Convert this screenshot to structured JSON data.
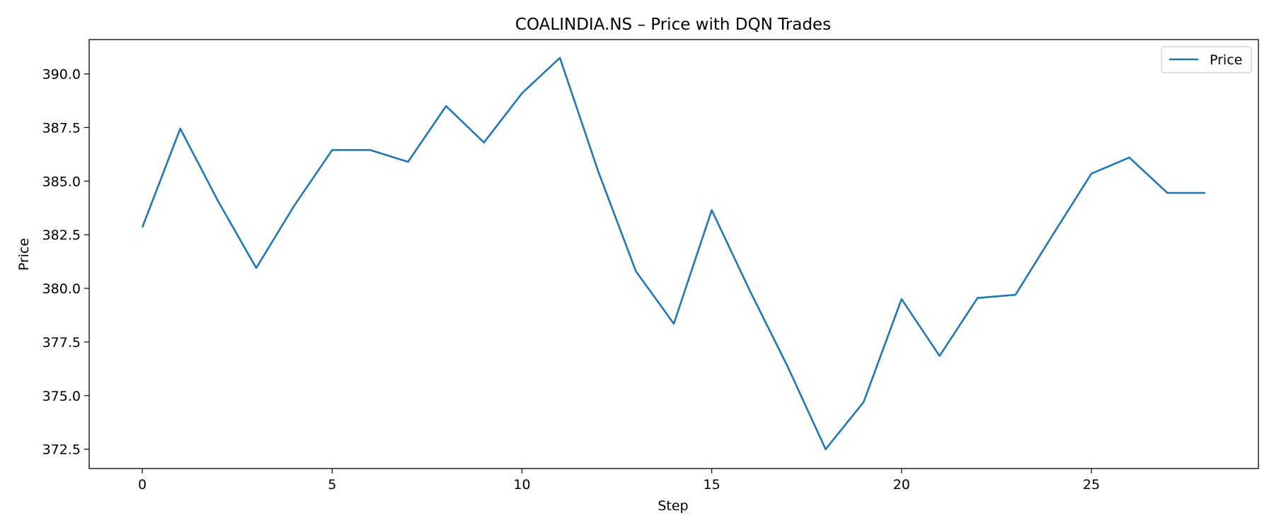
{
  "chart_data": {
    "type": "line",
    "title": "COALINDIA.NS – Price with DQN Trades",
    "xlabel": "Step",
    "ylabel": "Price",
    "xlim": [
      -1.4,
      29.4
    ],
    "ylim": [
      371.6,
      391.6
    ],
    "xticks": [
      0,
      5,
      10,
      15,
      20,
      25
    ],
    "yticks": [
      372.5,
      375.0,
      377.5,
      380.0,
      382.5,
      385.0,
      387.5,
      390.0
    ],
    "grid": false,
    "legend": {
      "position": "top-right",
      "entries": [
        "Price"
      ]
    },
    "series": [
      {
        "name": "Price",
        "color": "#1f77b4",
        "x": [
          0,
          1,
          2,
          3,
          4,
          5,
          6,
          7,
          8,
          9,
          10,
          11,
          12,
          13,
          14,
          15,
          16,
          17,
          18,
          19,
          20,
          21,
          22,
          23,
          24,
          25,
          26,
          27,
          28
        ],
        "values": [
          382.85,
          387.45,
          384.05,
          380.95,
          383.85,
          386.45,
          386.45,
          385.9,
          388.5,
          386.8,
          389.1,
          390.75,
          385.5,
          380.8,
          378.35,
          383.65,
          379.9,
          376.35,
          372.5,
          374.7,
          379.5,
          376.85,
          379.55,
          379.7,
          382.55,
          385.35,
          386.1,
          384.45,
          384.45
        ]
      }
    ]
  }
}
